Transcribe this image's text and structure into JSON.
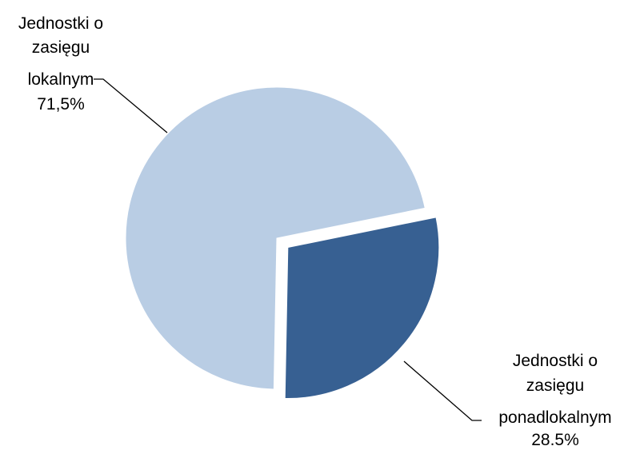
{
  "chart_data": {
    "type": "pie",
    "title": "",
    "slices": [
      {
        "label_lines": [
          "Jednostki o",
          "zasięgu",
          "lokalnym",
          "71,5%"
        ],
        "value": 71.5,
        "value_text": "71,5%",
        "color": "#b9cde4",
        "exploded": false
      },
      {
        "label_lines": [
          "Jednostki o",
          "zasięgu",
          "ponadlokalnym",
          "28.5%"
        ],
        "value": 28.5,
        "value_text": "28.5%",
        "color": "#376092",
        "exploded": true
      }
    ],
    "legend": "none"
  }
}
